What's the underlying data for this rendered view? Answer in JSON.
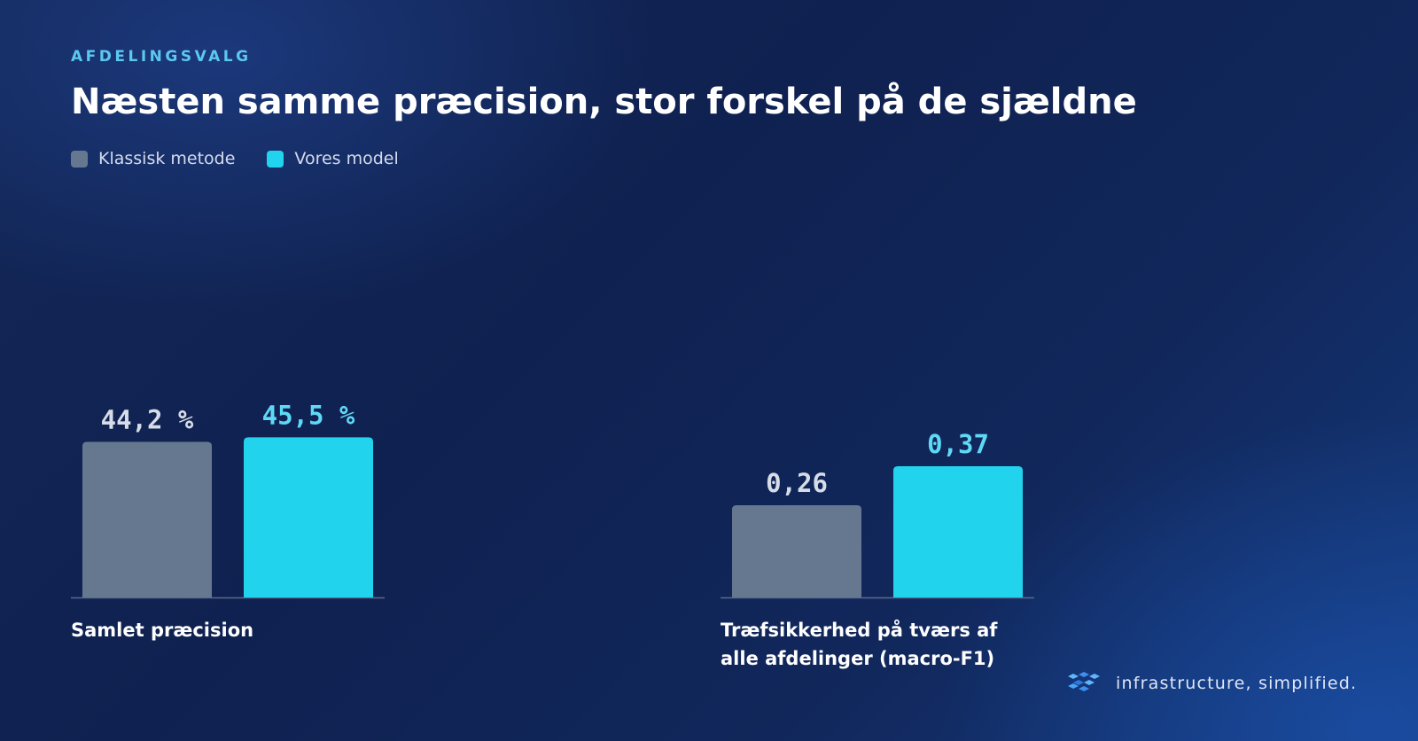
{
  "eyebrow": "AFDELINGSVALG",
  "title": "Næsten samme præcision, stor forskel på de sjældne",
  "colors": {
    "classic": "#66788f",
    "model": "#22d3ee",
    "classic_label": "#d6dde8",
    "model_label": "#5fd8f6",
    "baseline": "#5b6a8a"
  },
  "legend": [
    {
      "label": "Klassisk metode",
      "color": "#66788f"
    },
    {
      "label": "Vores model",
      "color": "#22d3ee"
    }
  ],
  "chart_data": [
    {
      "type": "bar",
      "categories": [
        "Samlet præcision"
      ],
      "caption": [
        "Samlet præcision"
      ],
      "series": [
        {
          "name": "Klassisk metode",
          "values": [
            44.2
          ],
          "label": "44,2 %"
        },
        {
          "name": "Vores model",
          "values": [
            45.5
          ],
          "label": "45,5 %"
        }
      ],
      "unit": "%"
    },
    {
      "type": "bar",
      "categories": [
        "Træfsikkerhed på tværs af alle afdelinger (macro-F1)"
      ],
      "caption": [
        "Træfsikkerhed på tværs af",
        "alle afdelinger (macro-F1)"
      ],
      "series": [
        {
          "name": "Klassisk metode",
          "values": [
            0.26
          ],
          "label": "0,26"
        },
        {
          "name": "Vores model",
          "values": [
            0.37
          ],
          "label": "0,37"
        }
      ]
    }
  ],
  "footer": {
    "brand_text": "infrastructure, simplified.",
    "logo_icon": "cubes-logo-icon"
  }
}
